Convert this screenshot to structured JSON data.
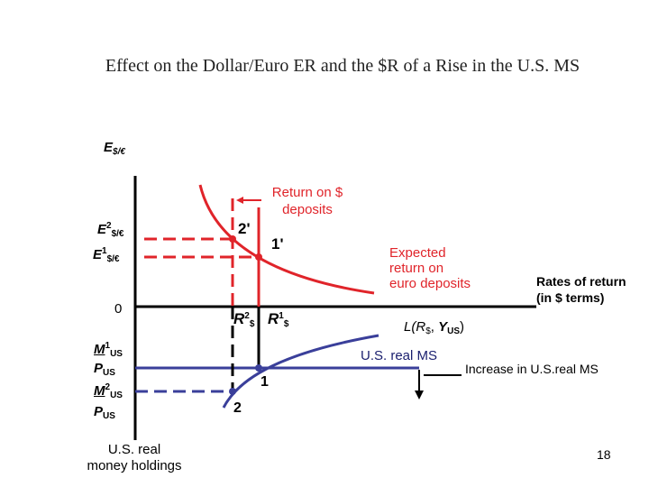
{
  "title": "Effect on the Dollar/Euro ER and the $R of a Rise in the U.S. MS",
  "colors": {
    "red": "#e0242a",
    "blue": "#3a3f9a",
    "black": "#000000"
  },
  "labels": {
    "e_axis": {
      "main": "E",
      "sub": "$/€"
    },
    "e2": {
      "main": "E",
      "sup": "2",
      "sub": "$/€"
    },
    "e1": {
      "main": "E",
      "sup": "1",
      "sub": "$/€"
    },
    "origin": "0",
    "m1": {
      "main": "M",
      "sup": "1",
      "sub": "US"
    },
    "p1": {
      "main": "P",
      "sub": "US"
    },
    "m2": {
      "main": "M",
      "sup": "2",
      "sub": "US"
    },
    "p2": {
      "main": "P",
      "sub": "US"
    },
    "money_axis": [
      "U.S. real",
      "money holdings"
    ],
    "return_dollar": [
      "Return on $",
      "deposits"
    ],
    "point_2p": "2'",
    "point_1p": "1'",
    "expected_euro": [
      "Expected",
      "return on",
      "euro deposits"
    ],
    "rates_return": [
      "Rates of return",
      "(in $ terms)"
    ],
    "r2": {
      "main": "R",
      "sup": "2",
      "sub": "$"
    },
    "r1": {
      "main": "R",
      "sup": "1",
      "sub": "$"
    },
    "l_curve": {
      "pre": "L(",
      "r": "R",
      "r_sub": "$",
      "mid": ", ",
      "y": "Y",
      "y_sub": "US",
      "post": ")"
    },
    "us_real_ms": "U.S. real MS",
    "point_1": "1",
    "point_2": "2",
    "increase_ms": "Increase in U.S.real MS",
    "slide_number": "18"
  }
}
